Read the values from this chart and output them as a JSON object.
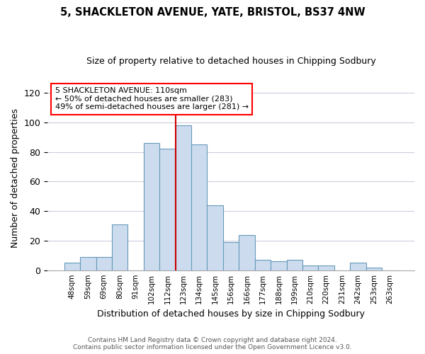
{
  "title1": "5, SHACKLETON AVENUE, YATE, BRISTOL, BS37 4NW",
  "title2": "Size of property relative to detached houses in Chipping Sodbury",
  "xlabel": "Distribution of detached houses by size in Chipping Sodbury",
  "ylabel": "Number of detached properties",
  "footer1": "Contains HM Land Registry data © Crown copyright and database right 2024.",
  "footer2": "Contains public sector information licensed under the Open Government Licence v3.0.",
  "categories": [
    "48sqm",
    "59sqm",
    "69sqm",
    "80sqm",
    "91sqm",
    "102sqm",
    "112sqm",
    "123sqm",
    "134sqm",
    "145sqm",
    "156sqm",
    "166sqm",
    "177sqm",
    "188sqm",
    "199sqm",
    "210sqm",
    "220sqm",
    "231sqm",
    "242sqm",
    "253sqm",
    "263sqm"
  ],
  "values": [
    5,
    9,
    9,
    31,
    0,
    86,
    82,
    98,
    85,
    44,
    19,
    24,
    7,
    6,
    7,
    3,
    3,
    0,
    5,
    2,
    0
  ],
  "bar_color": "#ccdcee",
  "bar_edge_color": "#6699bb",
  "vline_color": "#cc0000",
  "vline_index": 7,
  "annotation_line1": "5 SHACKLETON AVENUE: 110sqm",
  "annotation_line2": "← 50% of detached houses are smaller (283)",
  "annotation_line3": "49% of semi-detached houses are larger (281) →",
  "ylim": [
    0,
    125
  ],
  "yticks": [
    0,
    20,
    40,
    60,
    80,
    100,
    120
  ],
  "grid_color": "#ccccdd",
  "title1_fontsize": 10.5,
  "title2_fontsize": 9
}
